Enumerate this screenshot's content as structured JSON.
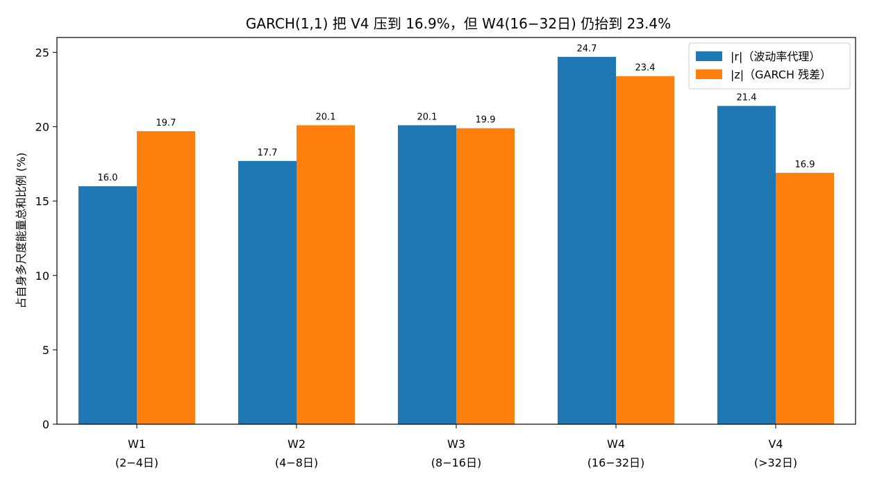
{
  "chart_data": {
    "type": "bar",
    "title": "GARCH(1,1) 把 V4 压到 16.9%，但 W4(16−32日) 仍抬到 23.4%",
    "xlabel": "",
    "ylabel": "占自身多尺度能量总和比例 (%)",
    "ylim": [
      0,
      26
    ],
    "yticks": [
      0,
      5,
      10,
      15,
      20,
      25
    ],
    "grid": false,
    "legend_position": "top-right",
    "categories": [
      [
        "W1",
        "(2−4日)"
      ],
      [
        "W2",
        "(4−8日)"
      ],
      [
        "W3",
        "(8−16日)"
      ],
      [
        "W4",
        "(16−32日)"
      ],
      [
        "V4",
        "(>32日)"
      ]
    ],
    "series": [
      {
        "name": "|r|（波动率代理）",
        "color": "#1f77b4",
        "values": [
          16.0,
          17.7,
          20.1,
          24.7,
          21.4
        ]
      },
      {
        "name": "|z|（GARCH 残差）",
        "color": "#ff7f0e",
        "values": [
          19.7,
          20.1,
          19.9,
          23.4,
          16.9
        ]
      }
    ]
  }
}
